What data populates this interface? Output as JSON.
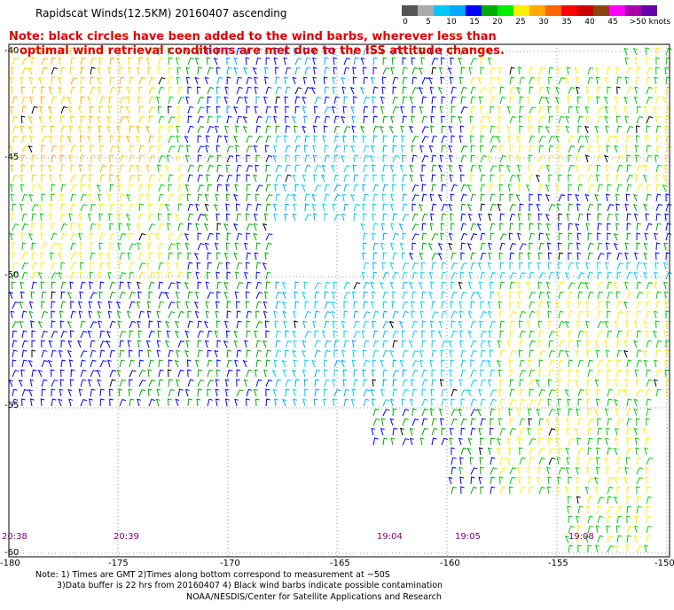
{
  "title": "Rapidscat Winds(12.5KM) 20160407 ascending",
  "note_line1": "Note: black circles have been added to the wind barbs, wherever less than",
  "note_line2": "optimal wind retrieval conditions are met due to the ISS attitude changes.",
  "colorbar": {
    "colors": [
      "#555555",
      "#aaaaaa",
      "#00c8ff",
      "#00aaff",
      "#0000ff",
      "#00aa00",
      "#00ee00",
      "#ffee00",
      "#ffaa00",
      "#ff6600",
      "#ff0000",
      "#cc0000",
      "#8b4513",
      "#ff00ff",
      "#aa00aa",
      "#6600aa"
    ],
    "labels": [
      "0",
      "5",
      "10",
      "15",
      "20",
      "25",
      "30",
      "35",
      "40",
      "45",
      ">50 knots"
    ]
  },
  "lat_labels": [
    "-40",
    "-45",
    "-50",
    "-55",
    "-60"
  ],
  "lon_labels": [
    "-180",
    "-175",
    "-170",
    "-165",
    "-160",
    "-155",
    "-150"
  ],
  "time_labels": [
    "20:38",
    "20:39",
    "19:04",
    "19:05",
    "19:08"
  ],
  "footnote_line1": "Note: 1) Times are GMT 2)Times along bottom correspond to measurement at ~50S",
  "footnote_line2": "3)Data buffer is 22 hrs from 20160407 4) Black wind barbs indicate possible contamination",
  "credit": "NOAA/NESDIS/Center for Satellite Applications and Research"
}
